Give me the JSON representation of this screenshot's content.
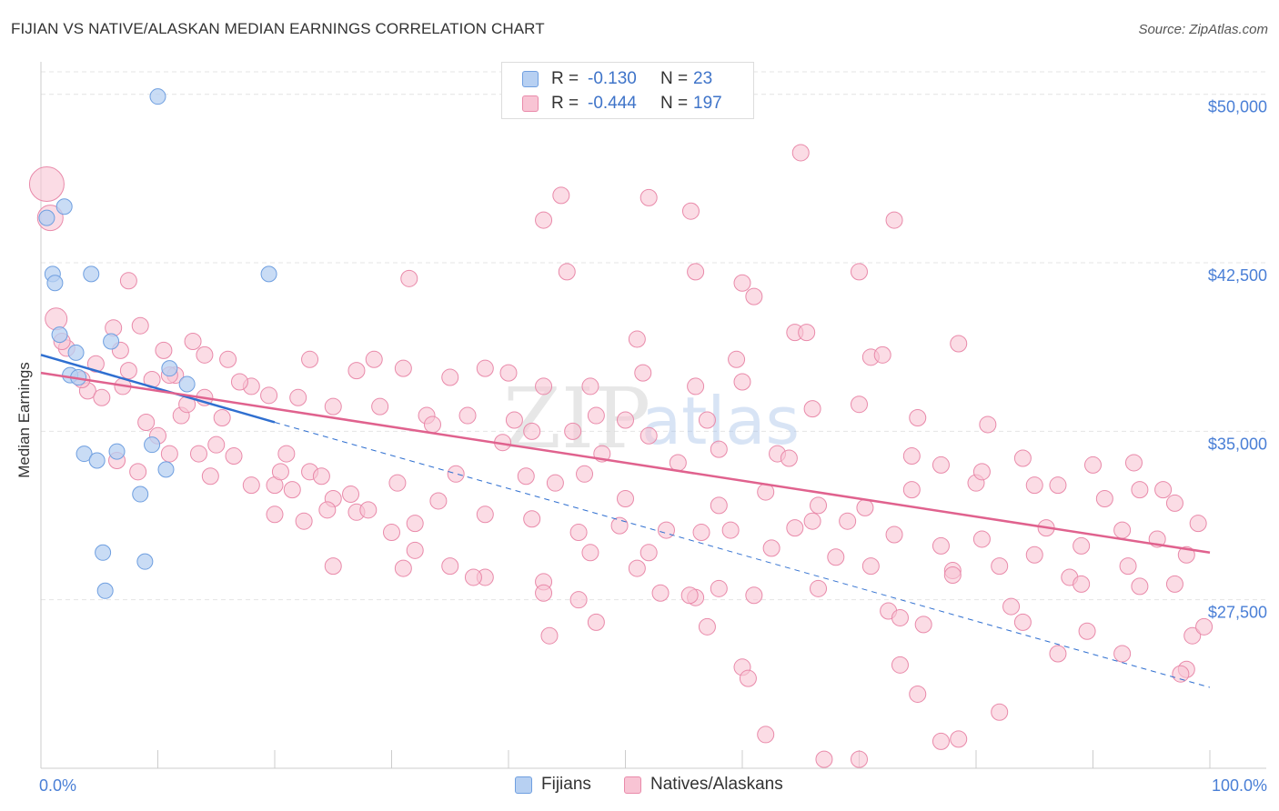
{
  "header": {
    "title": "FIJIAN VS NATIVE/ALASKAN MEDIAN EARNINGS CORRELATION CHART",
    "source": "Source: ZipAtlas.com"
  },
  "watermark": {
    "zip": "ZIP",
    "atlas": "atlas"
  },
  "colors": {
    "blue_fill": "#b7d0f2",
    "blue_stroke": "#6f9fe0",
    "blue_line": "#2f6fd0",
    "pink_fill": "#f8c4d4",
    "pink_stroke": "#e98aaa",
    "pink_line": "#e0628e",
    "axis_text": "#4a7fd6",
    "grid": "#e4e4e4"
  },
  "legend_top": {
    "rows": [
      {
        "r_label": "R =",
        "r_value": "-0.130",
        "n_label": "N =",
        "n_value": "23",
        "series": "Fijians"
      },
      {
        "r_label": "R =",
        "r_value": "-0.444",
        "n_label": "N =",
        "n_value": "197",
        "series": "Natives/Alaskans"
      }
    ]
  },
  "legend_bottom": {
    "items": [
      "Fijians",
      "Natives/Alaskans"
    ]
  },
  "chart_data": {
    "type": "scatter",
    "title": "FIJIAN VS NATIVE/ALASKAN MEDIAN EARNINGS CORRELATION CHART",
    "xlabel": "",
    "ylabel": "Median Earnings",
    "xlim": [
      0,
      100
    ],
    "ylim": [
      20000,
      51000
    ],
    "x_tick_labels": [
      "0.0%",
      "100.0%"
    ],
    "y_ticks": [
      27500,
      35000,
      42500,
      50000
    ],
    "y_tick_labels": [
      "$27,500",
      "$35,000",
      "$42,500",
      "$50,000"
    ],
    "grid": true,
    "series": [
      {
        "name": "Fijians",
        "r": -0.13,
        "n": 23,
        "trend": {
          "x0": 0,
          "y0": 38400,
          "x1": 20,
          "y1": 35400,
          "dashed_to_x": 100,
          "dashed_to_y": 23600
        },
        "points": [
          [
            10,
            49900
          ],
          [
            0.5,
            44500
          ],
          [
            2,
            45000
          ],
          [
            1,
            42000
          ],
          [
            1.2,
            41600
          ],
          [
            4.3,
            42000
          ],
          [
            19.5,
            42000
          ],
          [
            1.6,
            39300
          ],
          [
            3,
            38500
          ],
          [
            6,
            39000
          ],
          [
            2.5,
            37500
          ],
          [
            3.2,
            37400
          ],
          [
            11,
            37800
          ],
          [
            12.5,
            37100
          ],
          [
            3.7,
            34000
          ],
          [
            6.5,
            34100
          ],
          [
            9.5,
            34400
          ],
          [
            4.8,
            33700
          ],
          [
            10.7,
            33300
          ],
          [
            8.5,
            32200
          ],
          [
            5.3,
            29600
          ],
          [
            8.9,
            29200
          ],
          [
            5.5,
            27900
          ]
        ]
      },
      {
        "name": "Natives/Alaskans",
        "r": -0.444,
        "n": 197,
        "trend": {
          "x0": 0,
          "y0": 37600,
          "x1": 100,
          "y1": 29600
        },
        "points": [
          [
            0.5,
            46000
          ],
          [
            0.8,
            44500
          ],
          [
            1.3,
            40000
          ],
          [
            7.5,
            41700
          ],
          [
            13,
            39000
          ],
          [
            16,
            38200
          ],
          [
            18,
            37000
          ],
          [
            14,
            36500
          ],
          [
            12,
            35700
          ],
          [
            10,
            34800
          ],
          [
            15,
            34400
          ],
          [
            21,
            34000
          ],
          [
            23,
            33200
          ],
          [
            20,
            32600
          ],
          [
            25,
            32000
          ],
          [
            27,
            31400
          ],
          [
            30,
            30500
          ],
          [
            32,
            29700
          ],
          [
            35,
            29000
          ],
          [
            38,
            28500
          ],
          [
            43,
            44400
          ],
          [
            44.5,
            45500
          ],
          [
            52,
            45400
          ],
          [
            55.6,
            44800
          ],
          [
            65,
            47400
          ],
          [
            73,
            44400
          ],
          [
            31.5,
            41800
          ],
          [
            45,
            42100
          ],
          [
            60,
            41600
          ],
          [
            61,
            41000
          ],
          [
            70,
            42100
          ],
          [
            56,
            42100
          ],
          [
            64.5,
            39400
          ],
          [
            65.5,
            39400
          ],
          [
            51,
            39100
          ],
          [
            78.5,
            38900
          ],
          [
            71,
            38300
          ],
          [
            72,
            38400
          ],
          [
            23,
            38200
          ],
          [
            27,
            37700
          ],
          [
            28.5,
            38200
          ],
          [
            31,
            37800
          ],
          [
            35,
            37400
          ],
          [
            38,
            37800
          ],
          [
            40,
            37600
          ],
          [
            43,
            37000
          ],
          [
            47,
            37000
          ],
          [
            51.5,
            37600
          ],
          [
            56,
            37000
          ],
          [
            59.5,
            38200
          ],
          [
            60,
            37200
          ],
          [
            22,
            36500
          ],
          [
            25,
            36100
          ],
          [
            29,
            36100
          ],
          [
            33,
            35700
          ],
          [
            36.5,
            35700
          ],
          [
            40.5,
            35500
          ],
          [
            47.5,
            35700
          ],
          [
            50,
            35500
          ],
          [
            52,
            34800
          ],
          [
            57,
            35500
          ],
          [
            63,
            34000
          ],
          [
            66,
            36000
          ],
          [
            70,
            36200
          ],
          [
            75,
            35600
          ],
          [
            81,
            35300
          ],
          [
            33.5,
            35300
          ],
          [
            39.5,
            34500
          ],
          [
            42,
            35000
          ],
          [
            45.5,
            35000
          ],
          [
            48,
            34000
          ],
          [
            54.5,
            33600
          ],
          [
            64,
            33800
          ],
          [
            77,
            33500
          ],
          [
            80,
            32700
          ],
          [
            84,
            33800
          ],
          [
            90,
            33500
          ],
          [
            93.5,
            33600
          ],
          [
            96,
            32400
          ],
          [
            16.5,
            33900
          ],
          [
            20.5,
            33200
          ],
          [
            24,
            33000
          ],
          [
            26.5,
            32200
          ],
          [
            30.5,
            32700
          ],
          [
            35.5,
            33100
          ],
          [
            41.5,
            33000
          ],
          [
            44,
            32700
          ],
          [
            46.5,
            33100
          ],
          [
            50,
            32000
          ],
          [
            58,
            31700
          ],
          [
            62,
            32300
          ],
          [
            66.5,
            31700
          ],
          [
            70.5,
            31600
          ],
          [
            74.5,
            32400
          ],
          [
            80.5,
            33200
          ],
          [
            85,
            32600
          ],
          [
            87,
            32600
          ],
          [
            91,
            32000
          ],
          [
            94,
            32400
          ],
          [
            97,
            31800
          ],
          [
            99,
            30900
          ],
          [
            20,
            31300
          ],
          [
            22.5,
            31000
          ],
          [
            24.5,
            31500
          ],
          [
            28,
            31500
          ],
          [
            32,
            30900
          ],
          [
            34,
            31900
          ],
          [
            38,
            31300
          ],
          [
            42,
            31100
          ],
          [
            46,
            30500
          ],
          [
            49.5,
            30800
          ],
          [
            53.5,
            30600
          ],
          [
            59,
            30600
          ],
          [
            64.5,
            30700
          ],
          [
            69,
            31000
          ],
          [
            73,
            30400
          ],
          [
            77,
            29900
          ],
          [
            80.5,
            30200
          ],
          [
            86,
            30700
          ],
          [
            89,
            29900
          ],
          [
            92.5,
            30600
          ],
          [
            95.5,
            30200
          ],
          [
            25,
            29000
          ],
          [
            31,
            28900
          ],
          [
            37,
            28500
          ],
          [
            43,
            28300
          ],
          [
            47,
            29600
          ],
          [
            52,
            29600
          ],
          [
            56.5,
            30500
          ],
          [
            62.5,
            29800
          ],
          [
            71,
            29000
          ],
          [
            78,
            28800
          ],
          [
            82,
            29000
          ],
          [
            85,
            29500
          ],
          [
            88,
            28500
          ],
          [
            93,
            29000
          ],
          [
            98,
            29500
          ],
          [
            53,
            27800
          ],
          [
            56,
            27600
          ],
          [
            61,
            27700
          ],
          [
            66.5,
            28000
          ],
          [
            72.5,
            27000
          ],
          [
            83,
            27200
          ],
          [
            46,
            27500
          ],
          [
            51,
            28900
          ],
          [
            58,
            28000
          ],
          [
            68,
            29400
          ],
          [
            43,
            27800
          ],
          [
            55.5,
            27700
          ],
          [
            78,
            28600
          ],
          [
            89,
            28200
          ],
          [
            94,
            28100
          ],
          [
            97,
            28200
          ],
          [
            43.5,
            25900
          ],
          [
            47.5,
            26500
          ],
          [
            57,
            26300
          ],
          [
            73.5,
            26700
          ],
          [
            75.5,
            26400
          ],
          [
            84,
            26500
          ],
          [
            87,
            25100
          ],
          [
            89.5,
            26100
          ],
          [
            92.5,
            25100
          ],
          [
            98.5,
            25900
          ],
          [
            99.5,
            26300
          ],
          [
            60,
            24500
          ],
          [
            60.5,
            24000
          ],
          [
            73.5,
            24600
          ],
          [
            98,
            24400
          ],
          [
            97.5,
            24200
          ],
          [
            75,
            23300
          ],
          [
            82,
            22500
          ],
          [
            78.5,
            21300
          ],
          [
            77,
            21200
          ],
          [
            62,
            21500
          ],
          [
            70,
            20400
          ],
          [
            67,
            20400
          ],
          [
            6.5,
            33700
          ],
          [
            8.3,
            33200
          ],
          [
            11,
            34000
          ],
          [
            13.5,
            34000
          ],
          [
            14.5,
            33000
          ],
          [
            18,
            32600
          ],
          [
            21.5,
            32400
          ],
          [
            4,
            36800
          ],
          [
            5.2,
            36500
          ],
          [
            7,
            37000
          ],
          [
            9.5,
            37300
          ],
          [
            11.5,
            37500
          ],
          [
            12.5,
            36200
          ],
          [
            15.5,
            35600
          ],
          [
            3.5,
            37300
          ],
          [
            2.2,
            38700
          ],
          [
            4.7,
            38000
          ],
          [
            6.2,
            39600
          ],
          [
            8.5,
            39700
          ],
          [
            10.5,
            38600
          ],
          [
            6.8,
            38600
          ],
          [
            1.8,
            39000
          ],
          [
            17,
            37200
          ],
          [
            19.5,
            36600
          ],
          [
            14,
            38400
          ],
          [
            9,
            35400
          ],
          [
            11,
            37500
          ],
          [
            7.5,
            37700
          ],
          [
            66,
            31000
          ],
          [
            74.5,
            33900
          ],
          [
            58,
            34200
          ]
        ]
      }
    ]
  }
}
